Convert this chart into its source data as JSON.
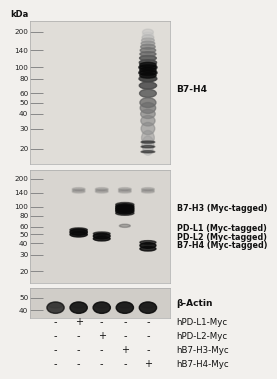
{
  "figure_bg": "#f2f0ed",
  "panel_bg": "#e8e5e0",
  "panel1_label": "B7-H4",
  "panel2_labels": [
    "B7-H3 (Myc-tagged)",
    "PD-L1 (Myc-tagged)",
    "PD-L2 (Myc-tagged)",
    "B7-H4 (Myc-tagged)"
  ],
  "panel3_label": "β-Actin",
  "sample_labels": [
    "hPD-L1-Myc",
    "hPD-L2-Myc",
    "hB7-H3-Myc",
    "hB7-H4-Myc"
  ],
  "sample_pattern": [
    [
      "-",
      "+",
      "-",
      "-",
      "-"
    ],
    [
      "-",
      "-",
      "+",
      "-",
      "-"
    ],
    [
      "-",
      "-",
      "-",
      "+",
      "-"
    ],
    [
      "-",
      "-",
      "-",
      "-",
      "+"
    ]
  ],
  "kda_label": "kDa",
  "panel1_kdas": [
    200,
    140,
    100,
    80,
    60,
    50,
    40,
    30,
    20
  ],
  "panel2_kdas": [
    200,
    140,
    100,
    80,
    60,
    50,
    40,
    30,
    20
  ],
  "panel3_kdas": [
    50,
    40
  ],
  "num_lanes": 5
}
